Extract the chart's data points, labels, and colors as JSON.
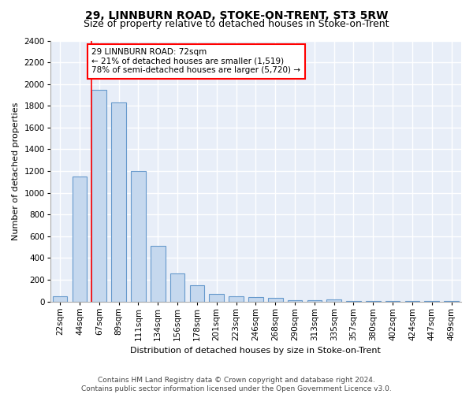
{
  "title": "29, LINNBURN ROAD, STOKE-ON-TRENT, ST3 5RW",
  "subtitle": "Size of property relative to detached houses in Stoke-on-Trent",
  "xlabel": "Distribution of detached houses by size in Stoke-on-Trent",
  "ylabel": "Number of detached properties",
  "categories": [
    "22sqm",
    "44sqm",
    "67sqm",
    "89sqm",
    "111sqm",
    "134sqm",
    "156sqm",
    "178sqm",
    "201sqm",
    "223sqm",
    "246sqm",
    "268sqm",
    "290sqm",
    "313sqm",
    "335sqm",
    "357sqm",
    "380sqm",
    "402sqm",
    "424sqm",
    "447sqm",
    "469sqm"
  ],
  "values": [
    50,
    1150,
    1950,
    1830,
    1200,
    510,
    260,
    150,
    70,
    45,
    40,
    35,
    15,
    10,
    20,
    5,
    5,
    5,
    5,
    5,
    5
  ],
  "bar_color": "#c5d8ee",
  "bar_edge_color": "#6699cc",
  "red_line_index": 2,
  "annotation_text": "29 LINNBURN ROAD: 72sqm\n← 21% of detached houses are smaller (1,519)\n78% of semi-detached houses are larger (5,720) →",
  "annotation_box_color": "white",
  "annotation_box_edge_color": "red",
  "ylim": [
    0,
    2400
  ],
  "yticks": [
    0,
    200,
    400,
    600,
    800,
    1000,
    1200,
    1400,
    1600,
    1800,
    2000,
    2200,
    2400
  ],
  "footer": "Contains HM Land Registry data © Crown copyright and database right 2024.\nContains public sector information licensed under the Open Government Licence v3.0.",
  "title_fontsize": 10,
  "subtitle_fontsize": 9,
  "axis_label_fontsize": 8,
  "tick_fontsize": 7.5,
  "annotation_fontsize": 7.5,
  "footer_fontsize": 6.5,
  "bg_color": "#e8eef8",
  "grid_color": "white",
  "bar_width": 0.75
}
